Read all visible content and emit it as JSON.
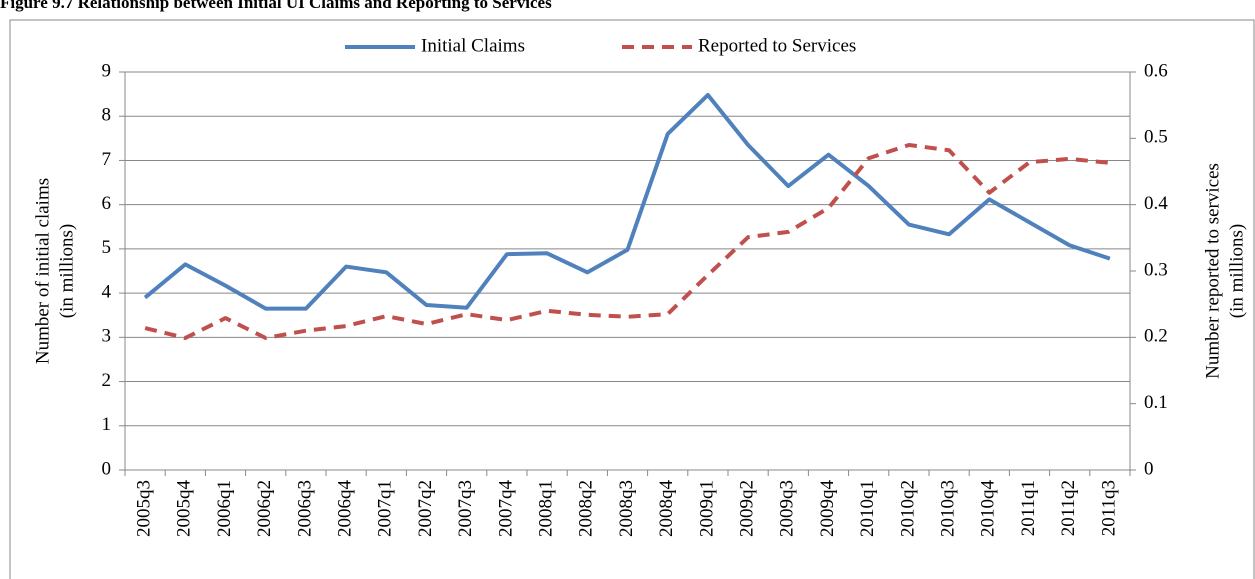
{
  "chart_data": {
    "type": "line",
    "title": "Figure 9.7  Relationship between Initial UI Claims and Reporting to Services",
    "y_label": [
      "Number of initial claims",
      "(in millions)"
    ],
    "y2_label": [
      "Number reported to services",
      "(in millions)"
    ],
    "categories": [
      "2005q3",
      "2005q4",
      "2006q1",
      "2006q2",
      "2006q3",
      "2006q4",
      "2007q1",
      "2007q2",
      "2007q3",
      "2007q4",
      "2008q1",
      "2008q2",
      "2008q3",
      "2008q4",
      "2009q1",
      "2009q2",
      "2009q3",
      "2009q4",
      "2010q1",
      "2010q2",
      "2010q3",
      "2010q4",
      "2011q1",
      "2011q2",
      "2011q3"
    ],
    "series": [
      {
        "name": "Initial Claims",
        "color": "#4f81bd",
        "dashed": false,
        "values": [
          3.9,
          4.65,
          4.17,
          3.65,
          3.65,
          4.6,
          4.47,
          3.73,
          3.67,
          4.88,
          4.9,
          4.47,
          4.98,
          7.6,
          8.48,
          7.35,
          6.42,
          7.13,
          6.42,
          5.55,
          5.33,
          6.12,
          5.6,
          5.08,
          4.78
        ]
      },
      {
        "name": "Reported to Services",
        "color": "#c0504d",
        "dashed": true,
        "axis": "y2",
        "values": [
          0.214,
          0.199,
          0.229,
          0.199,
          0.21,
          0.217,
          0.232,
          0.22,
          0.235,
          0.226,
          0.24,
          0.234,
          0.231,
          0.235,
          0.294,
          0.351,
          0.359,
          0.395,
          0.47,
          0.49,
          0.482,
          0.418,
          0.464,
          0.469,
          0.463
        ]
      }
    ],
    "ylim": [
      0,
      9
    ],
    "yticks": [
      0,
      1,
      2,
      3,
      4,
      5,
      6,
      7,
      8,
      9
    ],
    "y2lim": [
      0,
      0.6
    ],
    "y2ticks": [
      0,
      0.1,
      0.2,
      0.3,
      0.4,
      0.5,
      0.6
    ],
    "grid": true,
    "legend": "top"
  }
}
